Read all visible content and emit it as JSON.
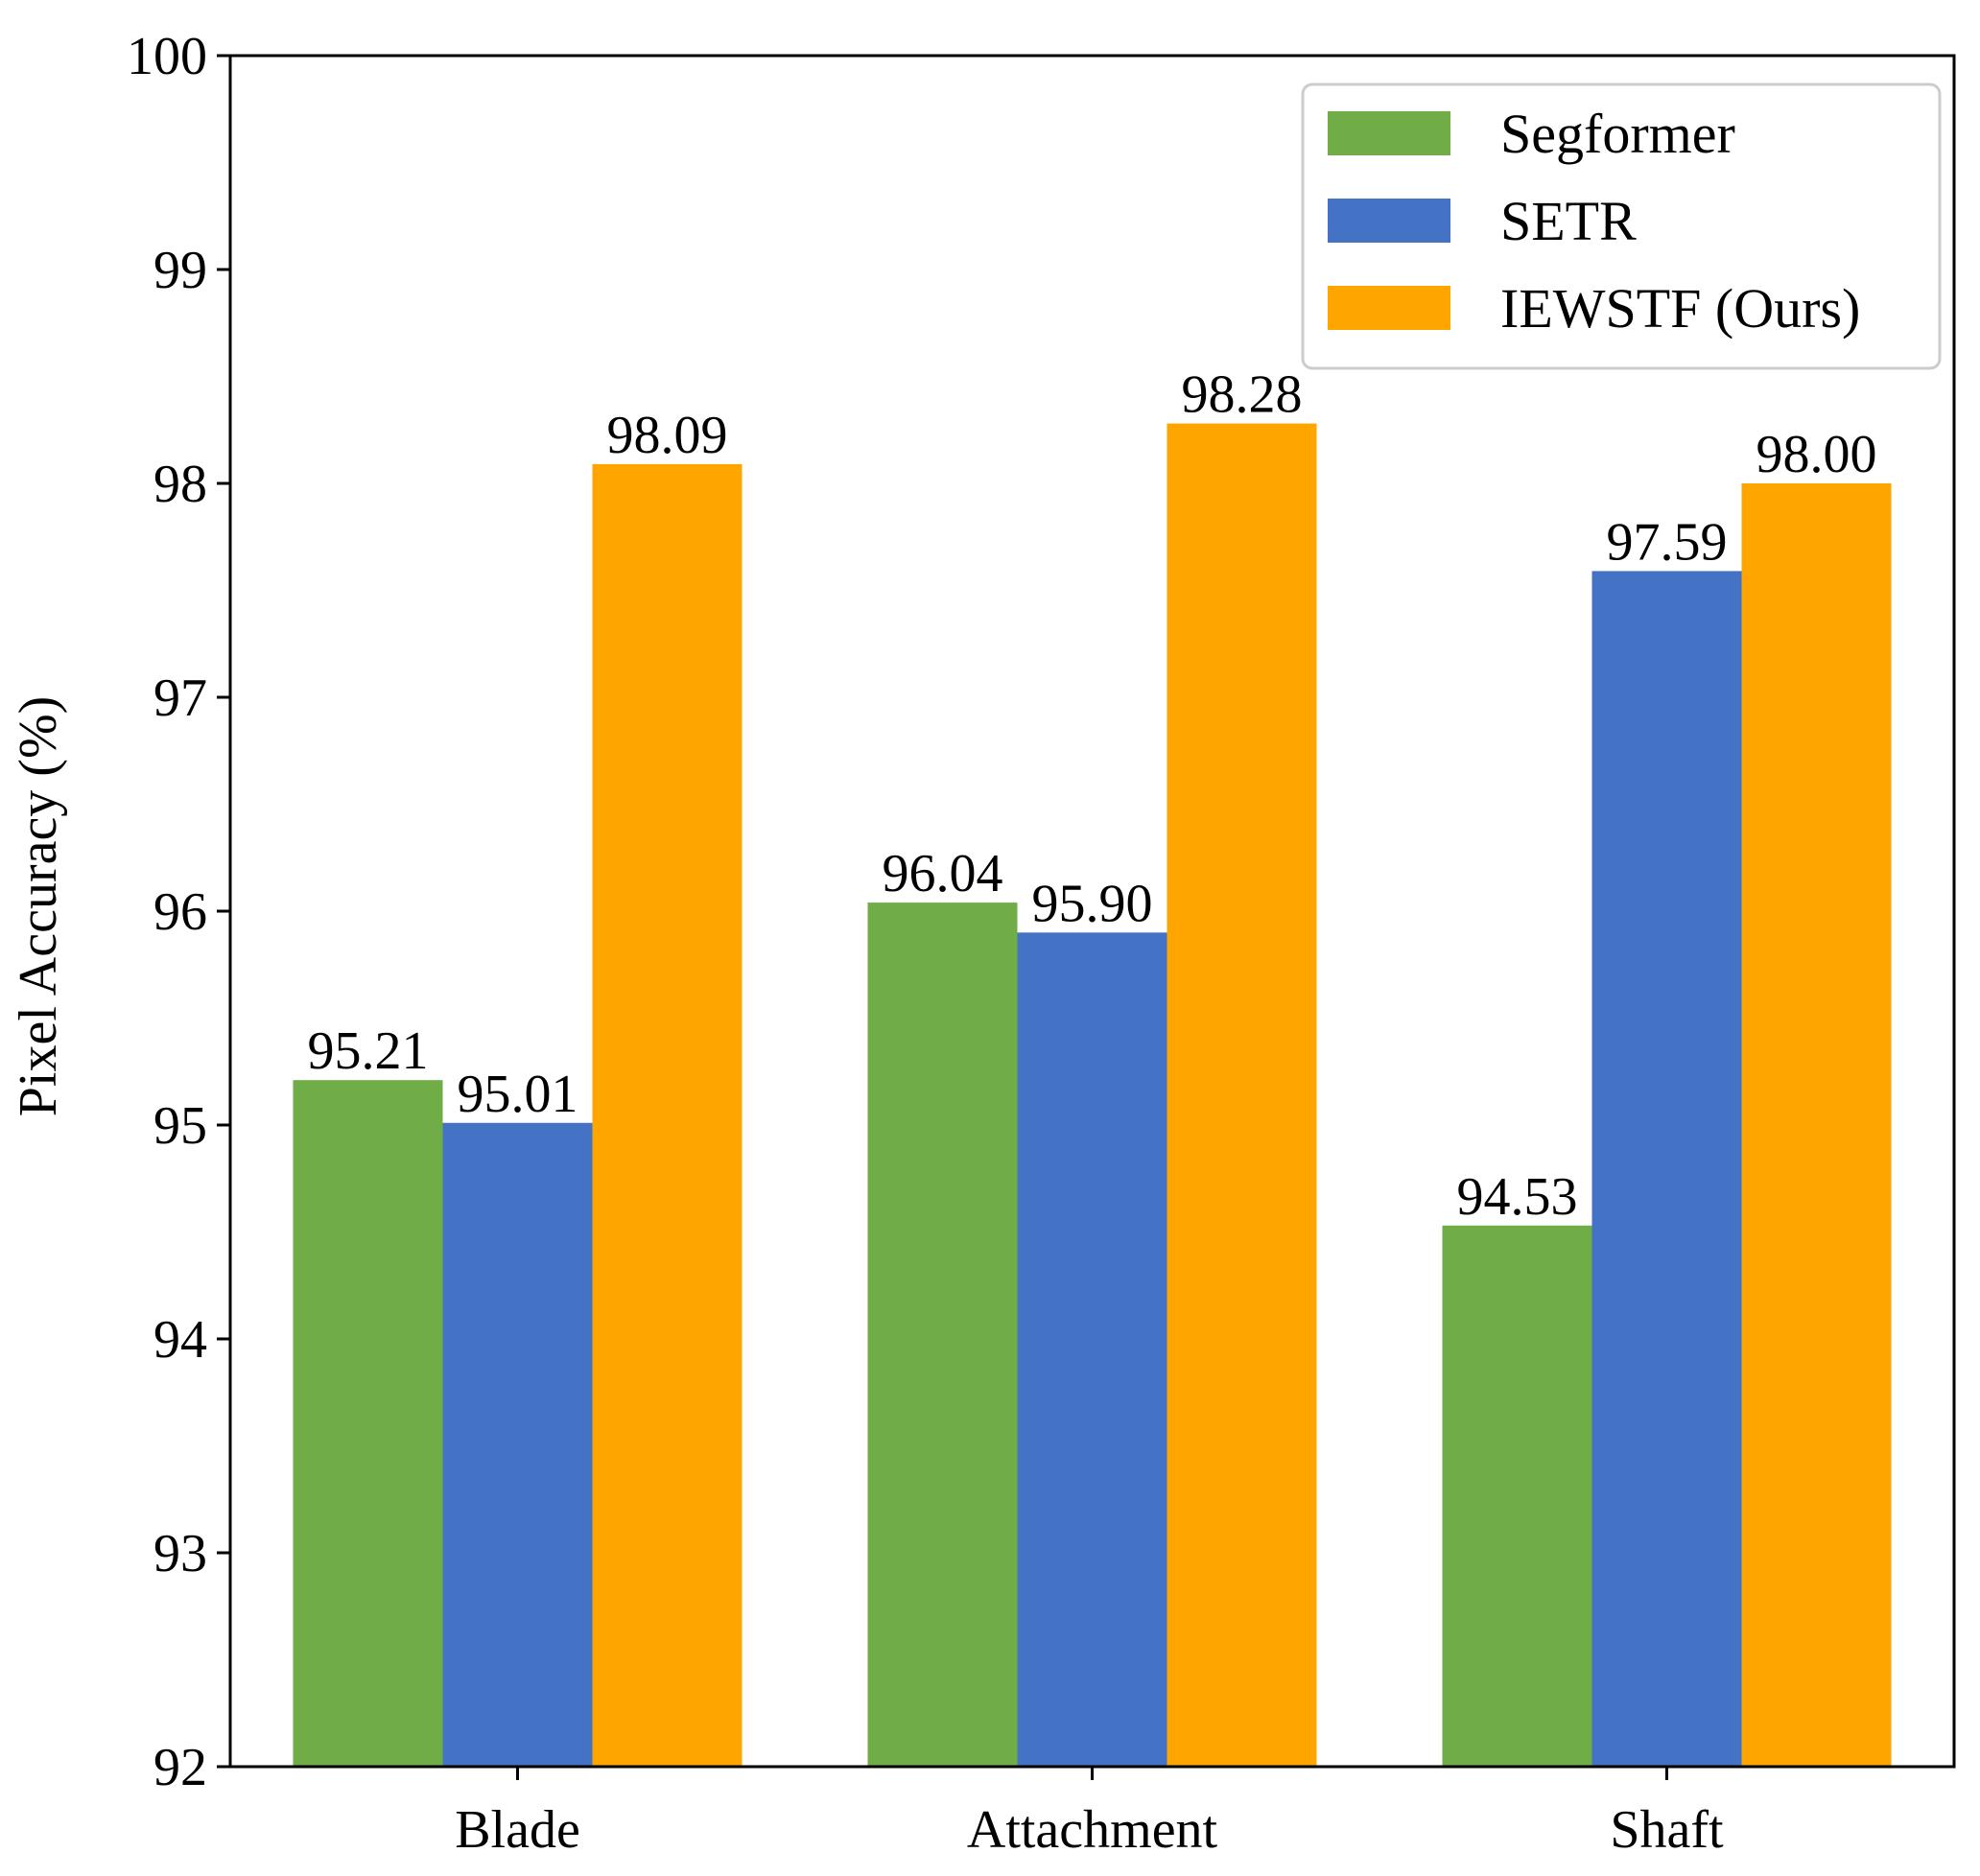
{
  "chart_data": {
    "type": "bar",
    "title": "",
    "xlabel": "",
    "ylabel": "Pixel Accuracy (%)",
    "ylim": [
      92,
      100
    ],
    "yticks": [
      92,
      93,
      94,
      95,
      96,
      97,
      98,
      99,
      100
    ],
    "grid": false,
    "legend_position": "top-right",
    "categories": [
      "Blade",
      "Attachment",
      "Shaft"
    ],
    "series": [
      {
        "name": "Segformer",
        "color": "#70AD47",
        "values": [
          95.21,
          96.04,
          94.53
        ],
        "labels": [
          "95.21",
          "96.04",
          "94.53"
        ]
      },
      {
        "name": "SETR",
        "color": "#4472C4",
        "values": [
          95.01,
          95.9,
          97.59
        ],
        "labels": [
          "95.01",
          "95.90",
          "97.59"
        ]
      },
      {
        "name": "IEWSTF (Ours)",
        "color": "#FFA500",
        "values": [
          98.09,
          98.28,
          98.0
        ],
        "labels": [
          "98.09",
          "98.28",
          "98.00"
        ]
      }
    ]
  }
}
